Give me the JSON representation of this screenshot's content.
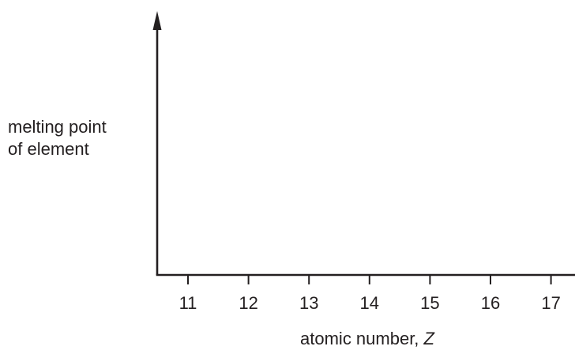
{
  "chart_data": {
    "type": "line",
    "title": "",
    "ylabel_lines": [
      "melting point",
      "of element"
    ],
    "xlabel_prefix": "atomic number, ",
    "xlabel_symbol": "Z",
    "x_ticks": [
      "11",
      "12",
      "13",
      "14",
      "15",
      "16",
      "17"
    ],
    "series": [],
    "grid": false
  }
}
